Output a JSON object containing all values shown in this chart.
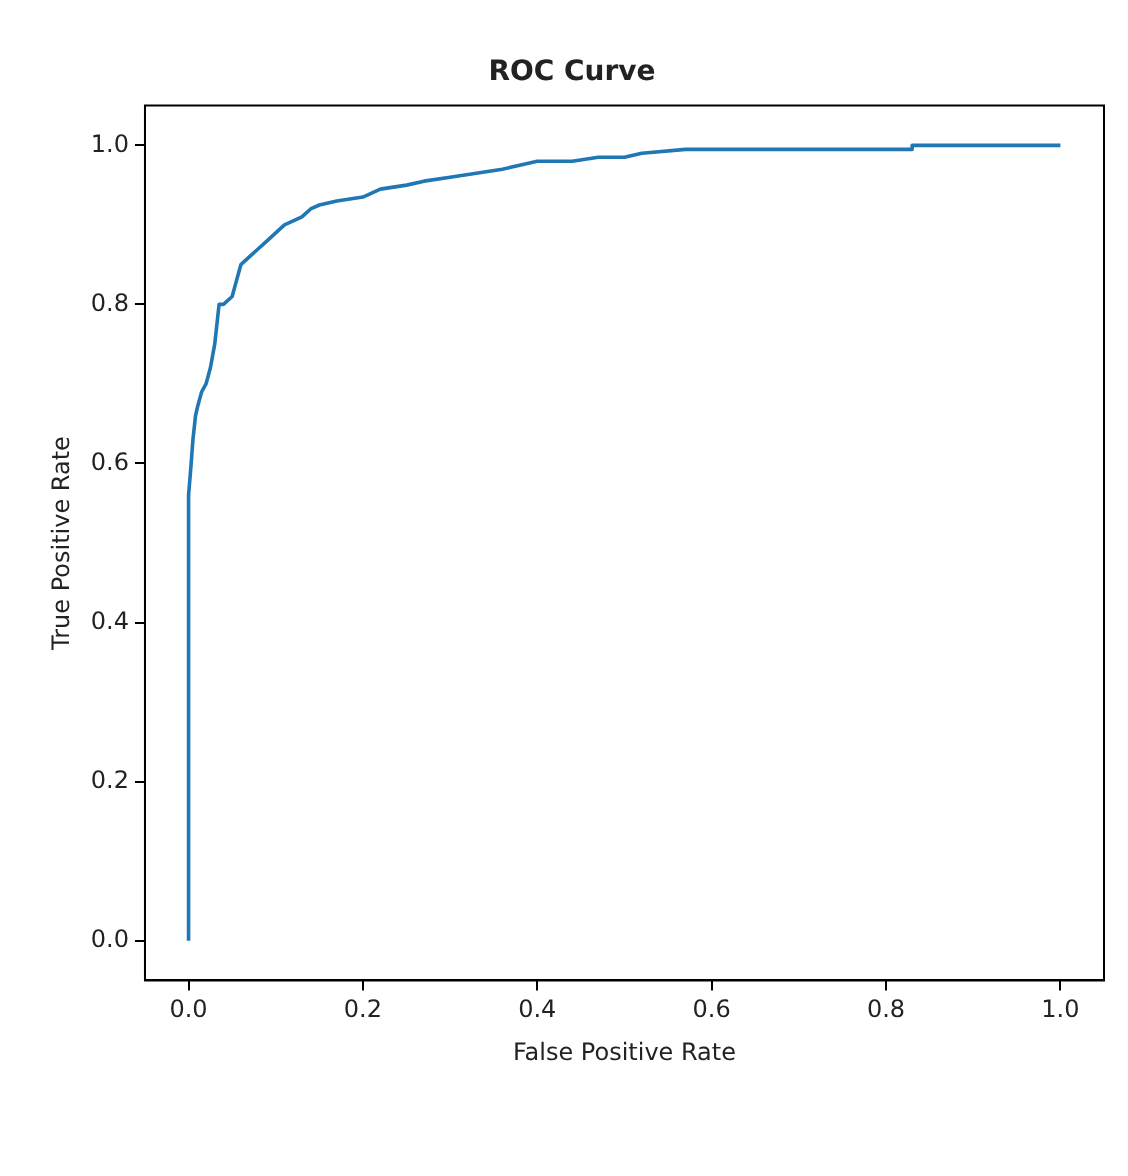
{
  "chart_data": {
    "type": "line",
    "title": "ROC Curve",
    "xlabel": "False Positive Rate",
    "ylabel": "True Positive Rate",
    "x": [
      0,
      0,
      0.003,
      0.005,
      0.008,
      0.01,
      0.015,
      0.02,
      0.025,
      0.03,
      0.035,
      0.04,
      0.05,
      0.055,
      0.06,
      0.07,
      0.08,
      0.09,
      0.1,
      0.11,
      0.13,
      0.14,
      0.15,
      0.17,
      0.2,
      0.22,
      0.25,
      0.27,
      0.3,
      0.33,
      0.36,
      0.4,
      0.44,
      0.47,
      0.5,
      0.52,
      0.57,
      0.83,
      0.83,
      1.0
    ],
    "series": [
      {
        "color": "#1f77b4",
        "values": [
          0,
          0.56,
          0.6,
          0.63,
          0.66,
          0.67,
          0.69,
          0.7,
          0.72,
          0.75,
          0.8,
          0.8,
          0.81,
          0.83,
          0.85,
          0.86,
          0.87,
          0.88,
          0.89,
          0.9,
          0.91,
          0.92,
          0.925,
          0.93,
          0.935,
          0.945,
          0.95,
          0.955,
          0.96,
          0.965,
          0.97,
          0.98,
          0.98,
          0.985,
          0.985,
          0.99,
          0.995,
          0.995,
          1.0,
          1.0
        ]
      }
    ],
    "xlim": [
      -0.05,
      1.05
    ],
    "ylim": [
      -0.05,
      1.05
    ],
    "xticks": [
      {
        "value": 0,
        "label": "0.0"
      },
      {
        "value": 0.2,
        "label": "0.2"
      },
      {
        "value": 0.4,
        "label": "0.4"
      },
      {
        "value": 0.6,
        "label": "0.6"
      },
      {
        "value": 0.8,
        "label": "0.8"
      },
      {
        "value": 1,
        "label": "1.0"
      }
    ],
    "yticks": [
      {
        "value": 0,
        "label": "0.0"
      },
      {
        "value": 0.2,
        "label": "0.2"
      },
      {
        "value": 0.4,
        "label": "0.4"
      },
      {
        "value": 0.6,
        "label": "0.6"
      },
      {
        "value": 0.8,
        "label": "0.8"
      },
      {
        "value": 1,
        "label": "1.0"
      }
    ],
    "grid": false,
    "legend": false,
    "marker": "none",
    "line_style": "solid"
  }
}
